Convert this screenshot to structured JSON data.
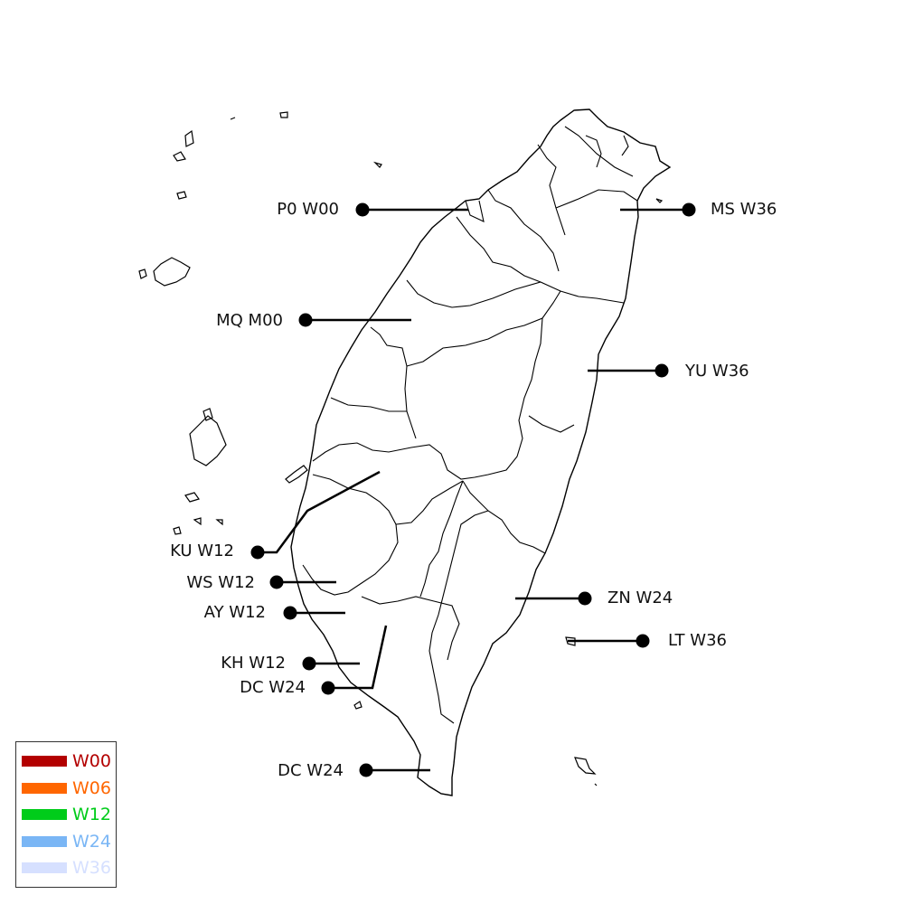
{
  "stations": [
    {
      "label": "P0 W00"
    },
    {
      "label": "MS W36"
    },
    {
      "label": "MQ M00"
    },
    {
      "label": "YU W36"
    },
    {
      "label": "KU W12"
    },
    {
      "label": "WS W12"
    },
    {
      "label": "AY W12"
    },
    {
      "label": "ZN W24"
    },
    {
      "label": "LT W36"
    },
    {
      "label": "KH W12"
    },
    {
      "label": "DC W24"
    },
    {
      "label": "DC W24"
    }
  ],
  "legend": {
    "items": [
      {
        "label": "W00",
        "color": "#b30000"
      },
      {
        "label": "W06",
        "color": "#ff6600"
      },
      {
        "label": "W12",
        "color": "#00cc1a"
      },
      {
        "label": "W24",
        "color": "#7ab6f5"
      },
      {
        "label": "W36",
        "color": "#d6e0ff"
      }
    ]
  },
  "colors": {
    "outline": "#000000",
    "marker": "#000000",
    "label": "#111111"
  }
}
